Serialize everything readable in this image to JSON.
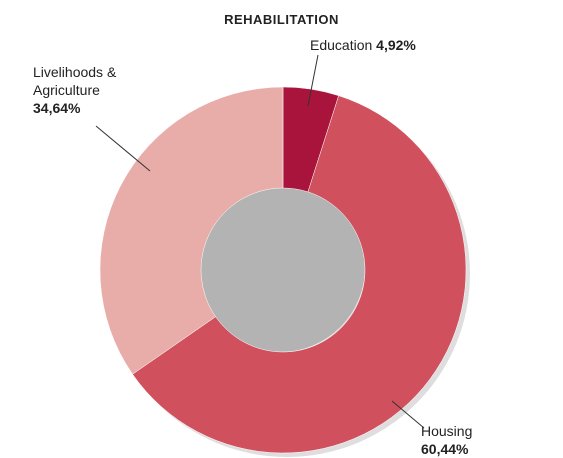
{
  "chart_data": {
    "type": "donut",
    "title": "REHABILITATION",
    "categories": [
      "Education",
      "Housing",
      "Livelihoods & Agriculture"
    ],
    "values": [
      4.92,
      60.44,
      34.64
    ],
    "value_labels": [
      "4,92%",
      "60,44%",
      "34,64%"
    ],
    "colors": [
      "#a8143c",
      "#d0505e",
      "#e8ada9"
    ]
  }
}
